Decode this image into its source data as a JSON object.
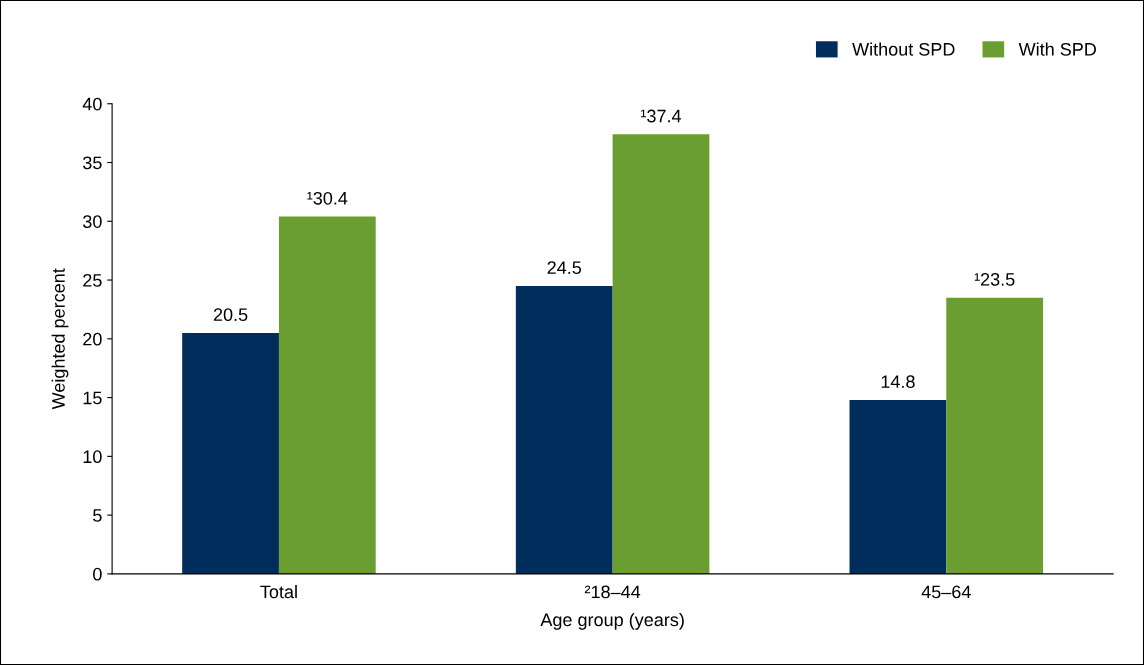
{
  "chart_data": {
    "type": "bar",
    "xlabel": "Age group (years)",
    "ylabel": "Weighted percent",
    "categories": [
      "Total",
      "²18–44",
      "45–64"
    ],
    "series": [
      {
        "name": "Without SPD",
        "color": "#002d5c",
        "values": [
          20.5,
          24.5,
          14.8
        ],
        "value_labels": [
          "20.5",
          "24.5",
          "14.8"
        ]
      },
      {
        "name": "With SPD",
        "color": "#6b9e31",
        "values": [
          30.4,
          37.4,
          23.5
        ],
        "value_labels": [
          "¹30.4",
          "¹37.4",
          "¹23.5"
        ]
      }
    ],
    "ylim": [
      0,
      40
    ],
    "yticks": [
      0,
      5,
      10,
      15,
      20,
      25,
      30,
      35,
      40
    ],
    "grid": false,
    "legend": "top right"
  }
}
